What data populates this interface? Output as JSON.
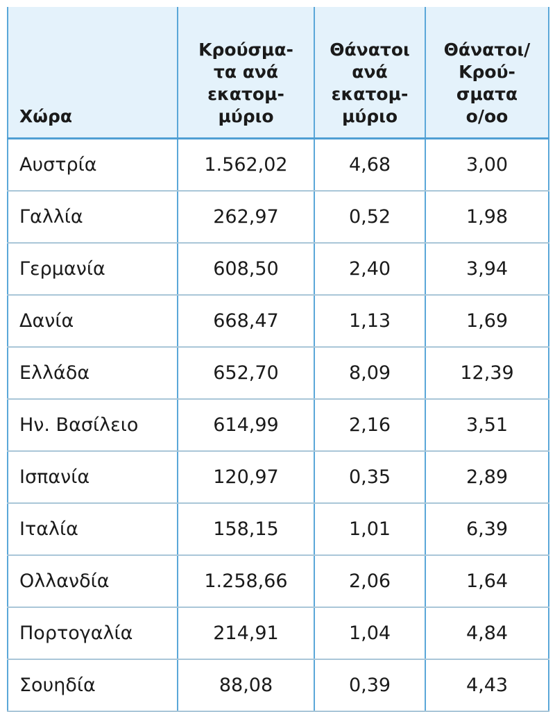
{
  "table": {
    "header": [
      [
        "Χώρα"
      ],
      [
        "Κρούσμα-",
        "τα ανά",
        "εκατομ-",
        "μύριο"
      ],
      [
        "Θάνατοι",
        "ανά",
        "εκατομ-",
        "μύριο"
      ],
      [
        "Θάνατοι/",
        "Κρού-",
        "σματα",
        "ο/οο"
      ]
    ],
    "rows": [
      [
        "Αυστρία",
        "1.562,02",
        "4,68",
        "3,00"
      ],
      [
        "Γαλλία",
        "262,97",
        "0,52",
        "1,98"
      ],
      [
        "Γερμανία",
        "608,50",
        "2,40",
        "3,94"
      ],
      [
        "Δανία",
        "668,47",
        "1,13",
        "1,69"
      ],
      [
        "Ελλάδα",
        "652,70",
        "8,09",
        "12,39"
      ],
      [
        "Ην. Βασίλειο",
        "614,99",
        "2,16",
        "3,51"
      ],
      [
        "Ισπανία",
        "120,97",
        "0,35",
        "2,89"
      ],
      [
        "Ιταλία",
        "158,15",
        "1,01",
        "6,39"
      ],
      [
        "Ολλανδία",
        "1.258,66",
        "2,06",
        "1,64"
      ],
      [
        "Πορτογαλία",
        "214,91",
        "1,04",
        "4,84"
      ],
      [
        "Σουηδία",
        "88,08",
        "0,39",
        "4,43"
      ]
    ]
  }
}
